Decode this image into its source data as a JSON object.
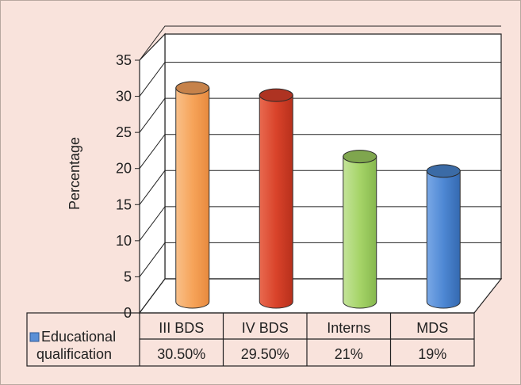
{
  "chart_data": {
    "type": "bar",
    "style": "3d-cylinder",
    "categories": [
      "III BDS",
      "IV BDS",
      "Interns",
      "MDS"
    ],
    "series": [
      {
        "name": "Educational qualification",
        "values": [
          30.5,
          29.5,
          21,
          19
        ],
        "value_labels": [
          "30.50%",
          "29.50%",
          "21%",
          "19%"
        ],
        "color": "#5b8fd6"
      }
    ],
    "bar_colors": [
      "#f7a35c",
      "#d9402a",
      "#9fcf62",
      "#4a86d0"
    ],
    "ylabel": "Percentage",
    "ylim": [
      0,
      35
    ],
    "yticks": [
      "0",
      "5",
      "10",
      "15",
      "20",
      "25",
      "30",
      "35"
    ],
    "grid": true,
    "legend": "data-table"
  },
  "legend_lines": [
    "Educational",
    "qualification"
  ]
}
